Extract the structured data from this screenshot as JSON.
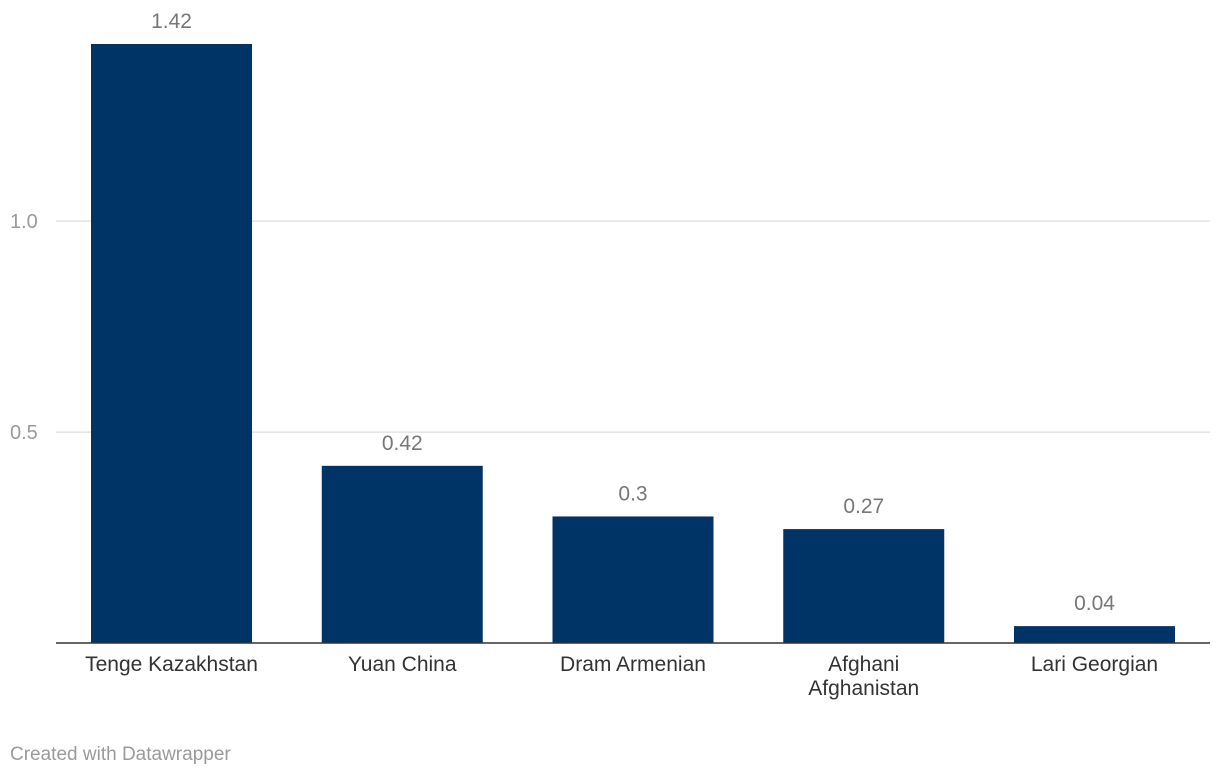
{
  "chart_data": {
    "type": "bar",
    "categories": [
      "Tenge Kazakhstan",
      "Yuan China",
      "Dram Armenian",
      "Afghani Afghanistan",
      "Lari Georgian"
    ],
    "category_lines": [
      [
        "Tenge Kazakhstan"
      ],
      [
        "Yuan China"
      ],
      [
        "Dram Armenian"
      ],
      [
        "Afghani",
        "Afghanistan"
      ],
      [
        "Lari Georgian"
      ]
    ],
    "values": [
      1.42,
      0.42,
      0.3,
      0.27,
      0.04
    ],
    "value_labels": [
      "1.42",
      "0.42",
      "0.3",
      "0.27",
      "0.04"
    ],
    "yticks": [
      0.5,
      1.0
    ],
    "ytick_labels": [
      "0.5",
      "1.0"
    ],
    "ylim": [
      0,
      1.42
    ],
    "grid": true,
    "bar_color": "#003366",
    "title": "",
    "xlabel": "",
    "ylabel": ""
  },
  "footer": {
    "credit": "Created with Datawrapper"
  }
}
